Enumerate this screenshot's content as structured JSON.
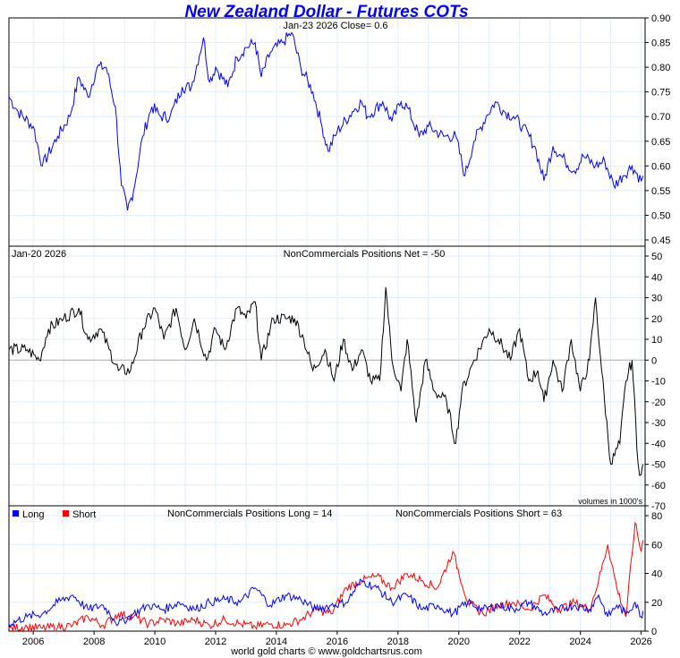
{
  "title": "New Zealand Dollar - Futures COTs",
  "footer": "world gold charts © www.goldchartsrus.com",
  "chart_data": [
    {
      "type": "line",
      "name": "price",
      "header": "Jan-23  2026   Close= 0.6",
      "ylim": [
        0.45,
        0.9
      ],
      "yticks": [
        "0.90",
        "0.85",
        "0.80",
        "0.75",
        "0.70",
        "0.65",
        "0.60",
        "0.55",
        "0.50",
        "0.45"
      ],
      "color": "#0000ff",
      "x": [
        2005.2,
        2005.5,
        2006.0,
        2006.3,
        2006.8,
        2007.2,
        2007.5,
        2007.8,
        2008.1,
        2008.4,
        2008.7,
        2008.9,
        2009.1,
        2009.3,
        2009.6,
        2009.9,
        2010.2,
        2010.5,
        2010.9,
        2011.2,
        2011.6,
        2011.8,
        2012.0,
        2012.4,
        2012.7,
        2013.0,
        2013.3,
        2013.5,
        2013.8,
        2014.2,
        2014.5,
        2014.8,
        2015.2,
        2015.5,
        2015.7,
        2016.0,
        2016.5,
        2016.8,
        2017.0,
        2017.5,
        2017.8,
        2018.1,
        2018.3,
        2018.7,
        2019.0,
        2019.5,
        2019.9,
        2020.2,
        2020.5,
        2020.9,
        2021.2,
        2021.5,
        2021.8,
        2022.1,
        2022.5,
        2022.8,
        2023.1,
        2023.5,
        2023.8,
        2024.1,
        2024.5,
        2024.8,
        2025.1,
        2025.4,
        2025.7,
        2026.0,
        2026.06
      ],
      "values": [
        0.74,
        0.71,
        0.68,
        0.6,
        0.66,
        0.7,
        0.78,
        0.74,
        0.8,
        0.8,
        0.72,
        0.56,
        0.51,
        0.55,
        0.66,
        0.72,
        0.7,
        0.7,
        0.76,
        0.76,
        0.86,
        0.77,
        0.8,
        0.76,
        0.82,
        0.84,
        0.85,
        0.78,
        0.83,
        0.85,
        0.87,
        0.8,
        0.75,
        0.68,
        0.63,
        0.67,
        0.71,
        0.73,
        0.7,
        0.73,
        0.69,
        0.73,
        0.72,
        0.66,
        0.68,
        0.66,
        0.66,
        0.58,
        0.65,
        0.7,
        0.73,
        0.71,
        0.7,
        0.68,
        0.64,
        0.57,
        0.64,
        0.61,
        0.59,
        0.62,
        0.6,
        0.61,
        0.56,
        0.58,
        0.6,
        0.57,
        0.58
      ]
    },
    {
      "type": "line",
      "name": "net",
      "header_left": "Jan-20  2026",
      "header": "NonCommercials Positions Net = -50",
      "note": "volumes in 1000's",
      "ylim": [
        -70,
        50
      ],
      "yticks": [
        "50",
        "40",
        "30",
        "20",
        "10",
        "0",
        "-10",
        "-20",
        "-30",
        "-40",
        "-50",
        "-60",
        "-70"
      ],
      "color": "#000000",
      "x": [
        2005.2,
        2005.8,
        2006.2,
        2006.5,
        2007.0,
        2007.5,
        2007.8,
        2008.2,
        2008.5,
        2008.8,
        2009.2,
        2009.6,
        2010.0,
        2010.3,
        2010.7,
        2011.0,
        2011.3,
        2011.7,
        2012.0,
        2012.3,
        2012.7,
        2013.0,
        2013.3,
        2013.5,
        2013.9,
        2014.3,
        2014.6,
        2014.9,
        2015.2,
        2015.6,
        2015.9,
        2016.2,
        2016.5,
        2016.8,
        2017.1,
        2017.4,
        2017.6,
        2017.8,
        2018.1,
        2018.3,
        2018.6,
        2018.9,
        2019.2,
        2019.6,
        2019.9,
        2020.1,
        2020.5,
        2021.0,
        2021.3,
        2021.7,
        2022.0,
        2022.3,
        2022.6,
        2022.8,
        2023.1,
        2023.4,
        2023.7,
        2024.0,
        2024.3,
        2024.5,
        2024.7,
        2025.0,
        2025.3,
        2025.5,
        2025.7,
        2025.9,
        2026.0,
        2026.06
      ],
      "values": [
        5,
        5,
        0,
        15,
        20,
        25,
        10,
        15,
        5,
        -5,
        -5,
        15,
        25,
        10,
        25,
        5,
        20,
        0,
        15,
        5,
        25,
        20,
        28,
        0,
        20,
        20,
        20,
        10,
        -5,
        5,
        -10,
        10,
        -5,
        5,
        -10,
        -10,
        35,
        0,
        -15,
        10,
        -30,
        0,
        -15,
        -20,
        -40,
        -15,
        0,
        15,
        10,
        0,
        15,
        -10,
        -5,
        -20,
        0,
        -15,
        10,
        -15,
        0,
        30,
        -5,
        -50,
        -40,
        -10,
        0,
        -50,
        -55,
        -50
      ]
    },
    {
      "type": "line",
      "name": "long-short",
      "legend": [
        {
          "label": "Long",
          "color": "#0000ff"
        },
        {
          "label": "Short",
          "color": "#ff0000"
        }
      ],
      "header_long": "NonCommercials Positions Long = 14",
      "header_short": "NonCommercials Positions Short = 63",
      "ylim": [
        0,
        80
      ],
      "yticks": [
        "80",
        "60",
        "40",
        "20",
        "0"
      ],
      "xticks": [
        "2006",
        "2008",
        "2010",
        "2012",
        "2014",
        "2016",
        "2018",
        "2020",
        "2022",
        "2024",
        "2026"
      ],
      "x": [
        2005.2,
        2005.8,
        2006.3,
        2006.8,
        2007.3,
        2007.8,
        2008.3,
        2008.8,
        2009.3,
        2009.8,
        2010.3,
        2010.8,
        2011.3,
        2011.8,
        2012.3,
        2012.8,
        2013.3,
        2013.8,
        2014.3,
        2014.8,
        2015.3,
        2015.8,
        2016.3,
        2016.8,
        2017.3,
        2017.8,
        2018.3,
        2018.8,
        2019.3,
        2019.8,
        2020.3,
        2020.8,
        2021.3,
        2021.8,
        2022.3,
        2022.8,
        2023.3,
        2023.8,
        2024.3,
        2024.6,
        2024.9,
        2025.2,
        2025.5,
        2025.8,
        2026.0,
        2026.06
      ],
      "series": [
        {
          "name": "Long",
          "color": "#0000ff",
          "values": [
            5,
            10,
            12,
            20,
            25,
            15,
            18,
            5,
            12,
            18,
            15,
            20,
            15,
            20,
            22,
            20,
            30,
            18,
            25,
            22,
            15,
            18,
            20,
            35,
            30,
            20,
            25,
            15,
            18,
            12,
            20,
            15,
            18,
            15,
            20,
            12,
            15,
            18,
            15,
            25,
            10,
            18,
            12,
            20,
            10,
            14
          ]
        },
        {
          "name": "Short",
          "color": "#ff0000",
          "values": [
            2,
            3,
            2,
            3,
            4,
            10,
            4,
            12,
            10,
            5,
            8,
            5,
            8,
            4,
            8,
            5,
            3,
            5,
            4,
            8,
            15,
            12,
            30,
            35,
            38,
            30,
            40,
            35,
            30,
            55,
            20,
            12,
            18,
            20,
            15,
            25,
            15,
            20,
            15,
            35,
            60,
            30,
            10,
            75,
            55,
            63
          ]
        }
      ]
    }
  ]
}
